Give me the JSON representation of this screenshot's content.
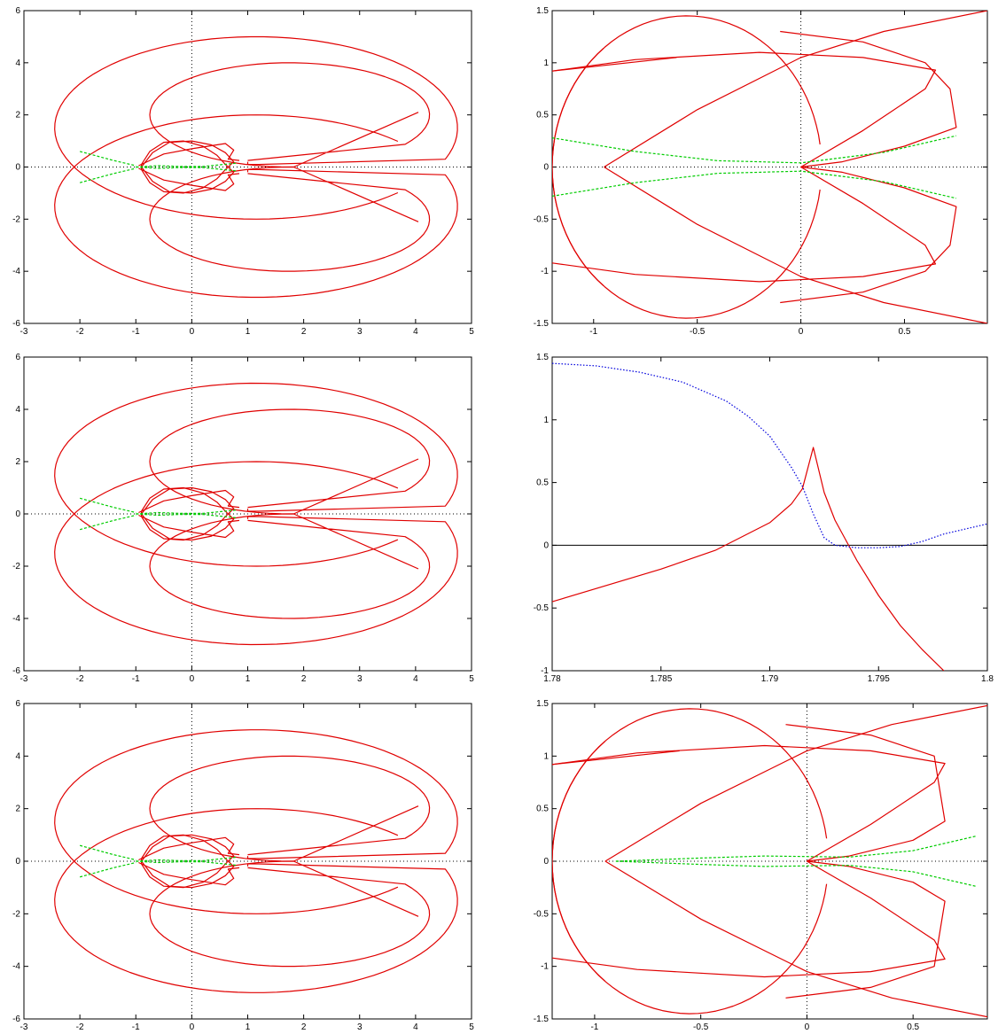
{
  "colors": {
    "red": "#e00000",
    "green": "#00cc00",
    "blue": "#0000dd",
    "axis": "#000000"
  },
  "chart_data": [
    {
      "id": "top-left",
      "type": "line",
      "xlim": [
        -3,
        5
      ],
      "ylim": [
        -6,
        6
      ],
      "xticks": [
        "-3",
        "-2",
        "-1",
        "0",
        "1",
        "2",
        "3",
        "4",
        "5"
      ],
      "yticks": [
        "-6",
        "-4",
        "-2",
        "0",
        "2",
        "4",
        "6"
      ],
      "zero_lines": "dotted-x-and-y",
      "series": [
        {
          "color": "red",
          "kind": "outer-and-inner-loops"
        },
        {
          "color": "green",
          "kind": "thin-lens-near-axis"
        }
      ]
    },
    {
      "id": "top-right",
      "type": "line",
      "xlim": [
        -1.2,
        0.9
      ],
      "ylim": [
        -1.5,
        1.5
      ],
      "xticks": [
        "-1",
        "-0.5",
        "0",
        "0.5"
      ],
      "yticks": [
        "-1.5",
        "-1",
        "-0.5",
        "0",
        "0.5",
        "1",
        "1.5"
      ],
      "zero_lines": "dotted-x-and-y",
      "series": [
        {
          "color": "red",
          "kind": "zoomed-loops"
        },
        {
          "color": "green",
          "kind": "bands-y-plus-minus-0.3"
        }
      ]
    },
    {
      "id": "middle-left",
      "type": "line",
      "xlim": [
        -3,
        5
      ],
      "ylim": [
        -6,
        6
      ],
      "xticks": [
        "-3",
        "-2",
        "-1",
        "0",
        "1",
        "2",
        "3",
        "4",
        "5"
      ],
      "yticks": [
        "-6",
        "-4",
        "-2",
        "0",
        "2",
        "4",
        "6"
      ],
      "zero_lines": "dotted-x-and-y",
      "series": [
        {
          "color": "red",
          "kind": "outer-and-inner-loops"
        },
        {
          "color": "green",
          "kind": "thin-lens-near-axis"
        }
      ]
    },
    {
      "id": "middle-right",
      "type": "line",
      "xlim": [
        1.78,
        1.8
      ],
      "ylim": [
        -1,
        1.5
      ],
      "xticks": [
        "1.78",
        "1.785",
        "1.79",
        "1.795",
        "1.8"
      ],
      "yticks": [
        "-1",
        "-0.5",
        "0",
        "0.5",
        "1",
        "1.5"
      ],
      "zero_lines": "solid-x",
      "series": [
        {
          "color": "red",
          "kind": "cusp",
          "x": [
            1.78,
            1.785,
            1.7875,
            1.79,
            1.791,
            1.7915,
            1.792,
            1.7925,
            1.793,
            1.794,
            1.795,
            1.796,
            1.797,
            1.798
          ],
          "y": [
            -0.45,
            -0.19,
            -0.04,
            0.18,
            0.33,
            0.45,
            0.78,
            0.42,
            0.2,
            -0.12,
            -0.4,
            -0.64,
            -0.83,
            -1.0
          ]
        },
        {
          "color": "blue",
          "kind": "dotted",
          "x": [
            1.78,
            1.782,
            1.784,
            1.786,
            1.788,
            1.789,
            1.79,
            1.791,
            1.7915,
            1.792,
            1.7925,
            1.793,
            1.794,
            1.795,
            1.796,
            1.797,
            1.798,
            1.8
          ],
          "y": [
            1.45,
            1.43,
            1.38,
            1.3,
            1.15,
            1.03,
            0.87,
            0.62,
            0.47,
            0.25,
            0.06,
            0.0,
            -0.02,
            -0.02,
            -0.01,
            0.03,
            0.09,
            0.17
          ]
        }
      ]
    },
    {
      "id": "bottom-left",
      "type": "line",
      "xlim": [
        -3,
        5
      ],
      "ylim": [
        -6,
        6
      ],
      "xticks": [
        "-3",
        "-2",
        "-1",
        "0",
        "1",
        "2",
        "3",
        "4",
        "5"
      ],
      "yticks": [
        "-6",
        "-4",
        "-2",
        "0",
        "2",
        "4",
        "6"
      ],
      "zero_lines": "dotted-x-and-y",
      "series": [
        {
          "color": "red",
          "kind": "outer-and-inner-loops"
        },
        {
          "color": "green",
          "kind": "thin-lens-near-axis"
        }
      ]
    },
    {
      "id": "bottom-right",
      "type": "line",
      "xlim": [
        -1.2,
        0.85
      ],
      "ylim": [
        -1.5,
        1.5
      ],
      "xticks": [
        "-1",
        "-0.5",
        "0",
        "0.5"
      ],
      "yticks": [
        "-1.5",
        "-1",
        "-0.5",
        "0",
        "0.5",
        "1",
        "1.5"
      ],
      "zero_lines": "dotted-x-and-y",
      "series": [
        {
          "color": "red",
          "kind": "zoomed-loops"
        },
        {
          "color": "green",
          "kind": "thin-lens-to-cusp"
        }
      ]
    }
  ]
}
